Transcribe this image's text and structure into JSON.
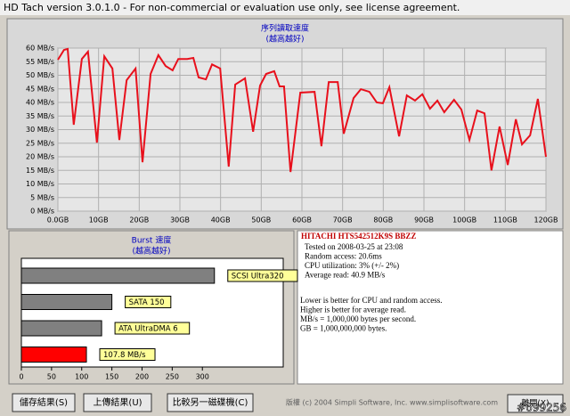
{
  "window_title": "HD Tach version 3.0.1.0  - For non-commercial or evaluation use only, see license agreement.",
  "chart_data": [
    {
      "type": "line",
      "title": "序列讀取速度",
      "subtitle": "(越高越好)",
      "x": [
        0,
        1.5,
        2.4,
        3.9,
        5.9,
        7.4,
        9.6,
        11.4,
        13.4,
        15.1,
        16.9,
        19.1,
        20.8,
        22.8,
        24.7,
        26.5,
        28.2,
        29.6,
        31.8,
        33.3,
        34.6,
        36.4,
        37.9,
        39.9,
        42,
        43.6,
        46,
        48,
        49.7,
        51.2,
        53.2,
        54.5,
        55.6,
        57.2,
        59.6,
        63.1,
        64.8,
        66.6,
        68.8,
        70.3,
        72.7,
        74.5,
        76.6,
        78.4,
        79.9,
        81.5,
        83.9,
        85.8,
        87.8,
        89.6,
        91.5,
        93.3,
        95,
        97.4,
        99.2,
        101.2,
        103.1,
        104.9,
        106.6,
        108.6,
        110.6,
        112.6,
        114.1,
        116.1,
        118,
        120
      ],
      "values": [
        55.7,
        59.3,
        59.7,
        31.8,
        56,
        58.7,
        25.2,
        57,
        52.5,
        26.2,
        48.2,
        52.5,
        18,
        50.5,
        57.4,
        53.4,
        51.8,
        56,
        56,
        56.4,
        49.2,
        48.5,
        54,
        52.5,
        16.4,
        46.6,
        48.9,
        29.2,
        46.2,
        50.5,
        51.5,
        45.9,
        45.9,
        14.4,
        43.6,
        43.9,
        23.9,
        47.5,
        47.5,
        28.5,
        41.6,
        44.9,
        43.9,
        40,
        39.7,
        45.6,
        27.5,
        42.6,
        40.7,
        43,
        37.7,
        40.7,
        36.4,
        41,
        37.4,
        26.2,
        37,
        36,
        15,
        31.1,
        17,
        33.8,
        24.6,
        27.9,
        41.3,
        20
      ],
      "color": "#e8101c",
      "xlim": [
        0,
        120
      ],
      "xticks": [
        {
          "value": 0,
          "label": "0.0GB"
        },
        {
          "value": 10,
          "label": "10GB"
        },
        {
          "value": 20,
          "label": "20GB"
        },
        {
          "value": 30,
          "label": "30GB"
        },
        {
          "value": 40,
          "label": "40GB"
        },
        {
          "value": 50,
          "label": "50GB"
        },
        {
          "value": 60,
          "label": "60GB"
        },
        {
          "value": 70,
          "label": "70GB"
        },
        {
          "value": 80,
          "label": "80GB"
        },
        {
          "value": 90,
          "label": "90GB"
        },
        {
          "value": 100,
          "label": "100GB"
        },
        {
          "value": 110,
          "label": "110GB"
        },
        {
          "value": 120,
          "label": "120GB"
        }
      ],
      "ylim": [
        0,
        60
      ],
      "yticks": [
        {
          "value": 0,
          "label": "0 MB/s"
        },
        {
          "value": 5,
          "label": "5 MB/s"
        },
        {
          "value": 10,
          "label": "10 MB/s"
        },
        {
          "value": 15,
          "label": "15 MB/s"
        },
        {
          "value": 20,
          "label": "20 MB/s"
        },
        {
          "value": 25,
          "label": "25 MB/s"
        },
        {
          "value": 30,
          "label": "30 MB/s"
        },
        {
          "value": 35,
          "label": "35 MB/s"
        },
        {
          "value": 40,
          "label": "40 MB/s"
        },
        {
          "value": 45,
          "label": "45 MB/s"
        },
        {
          "value": 50,
          "label": "50 MB/s"
        },
        {
          "value": 55,
          "label": "55 MB/s"
        },
        {
          "value": 60,
          "label": "60 MB/s"
        }
      ],
      "grid": true
    },
    {
      "type": "hbar",
      "title": "Burst 速度",
      "subtitle": "(越高越好)",
      "categories": [
        "SCSI Ultra320",
        "SATA 150",
        "ATA UltraDMA 6",
        null
      ],
      "values": [
        320,
        150,
        133,
        107.8
      ],
      "value_labels": [
        null,
        null,
        null,
        "107.8 MB/s"
      ],
      "colors": [
        "#808080",
        "#808080",
        "#808080",
        "#ff0000"
      ],
      "xlim": [
        0,
        434
      ],
      "xticks": [
        0,
        50,
        100,
        150,
        200,
        250,
        300
      ]
    }
  ],
  "drive_info": {
    "model": "HITACHI HTS542512K9S BBZZ",
    "lines": [
      "Tested on 2008-03-25 at 23:08",
      "Random access: 20.6ms",
      "CPU utilization: 3% (+/- 2%)",
      "Average read: 40.9 MB/s"
    ]
  },
  "notes": [
    "Lower is better for CPU and random access.",
    "Higher is better for average read.",
    "MB/s = 1,000,000 bytes per second.",
    "GB = 1,000,000,000 bytes."
  ],
  "buttons": [
    "儲存結果(S)",
    "上傳結果(U)",
    "比較另一磁碟機(C)"
  ],
  "copyright": "版權 (c) 2004 Simpli Software, Inc. www.simplisoftware.com",
  "exit_button": "離開(X)",
  "watermark": "#699256"
}
